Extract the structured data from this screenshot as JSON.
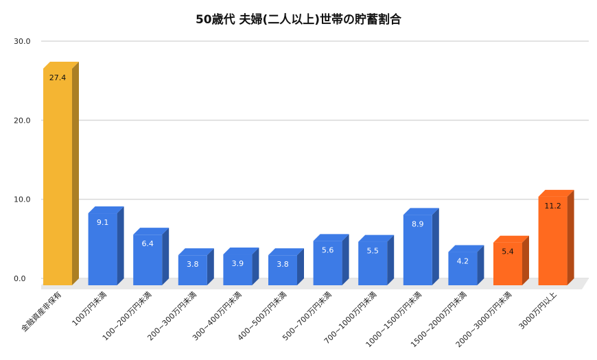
{
  "chart_data": {
    "type": "bar",
    "title": "50歳代 夫婦(二人以上)世帯の貯蓄割合",
    "xlabel": "",
    "ylabel": "",
    "ylim": [
      0,
      30
    ],
    "yticks": [
      "0.0",
      "10.0",
      "20.0",
      "30.0"
    ],
    "grid": true,
    "categories": [
      "金融資産非保有",
      "100万円未満",
      "100~200万円未満",
      "200~300万円未満",
      "300~400万円未満",
      "400~500万円未満",
      "500~700万円未満",
      "700~1000万円未満",
      "1000~1500万円未満",
      "1500~2000万円未満",
      "2000~3000万円未満",
      "3000万円以上"
    ],
    "values": [
      27.4,
      9.1,
      6.4,
      3.8,
      3.9,
      3.8,
      5.6,
      5.5,
      8.9,
      4.2,
      5.4,
      11.2
    ],
    "data_labels": [
      "27.4",
      "9.1",
      "6.4",
      "3.8",
      "3.9",
      "3.8",
      "5.6",
      "5.5",
      "8.9",
      "4.2",
      "5.4",
      "11.2"
    ],
    "bar_colors": [
      "#F4B533",
      "#3D7BE6",
      "#3D7BE6",
      "#3D7BE6",
      "#3D7BE6",
      "#3D7BE6",
      "#3D7BE6",
      "#3D7BE6",
      "#3D7BE6",
      "#3D7BE6",
      "#FF6A1F",
      "#FF6A1F"
    ]
  }
}
